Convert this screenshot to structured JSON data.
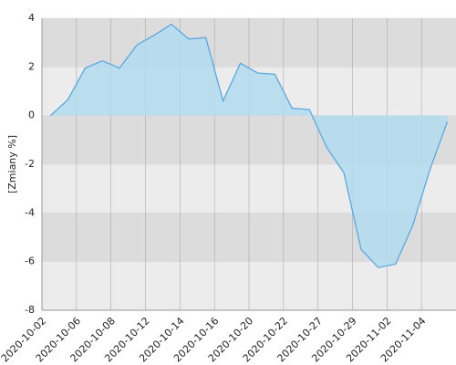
{
  "chart_data": {
    "type": "area",
    "y_label": "[Zmiany %]",
    "categories": [
      "2020-10-02",
      null,
      "2020-10-06",
      null,
      "2020-10-08",
      null,
      "2020-10-12",
      null,
      "2020-10-14",
      null,
      "2020-10-16",
      null,
      "2020-10-20",
      null,
      "2020-10-22",
      null,
      "2020-10-27",
      null,
      "2020-10-29",
      null,
      "2020-11-02",
      null,
      "2020-11-04",
      null
    ],
    "values": [
      0.0,
      0.65,
      1.95,
      2.25,
      1.95,
      2.9,
      3.3,
      3.75,
      3.15,
      3.2,
      0.6,
      2.15,
      1.75,
      1.7,
      0.3,
      0.25,
      -1.3,
      -2.35,
      -5.5,
      -6.25,
      -6.1,
      -4.5,
      -2.2,
      -0.25
    ],
    "color": "#5aa8e0",
    "fill": "#b3dcef",
    "ylim": [
      -8,
      4
    ],
    "yticks": [
      -8,
      -6,
      -4,
      -2,
      0,
      2,
      4
    ],
    "grid": true
  }
}
